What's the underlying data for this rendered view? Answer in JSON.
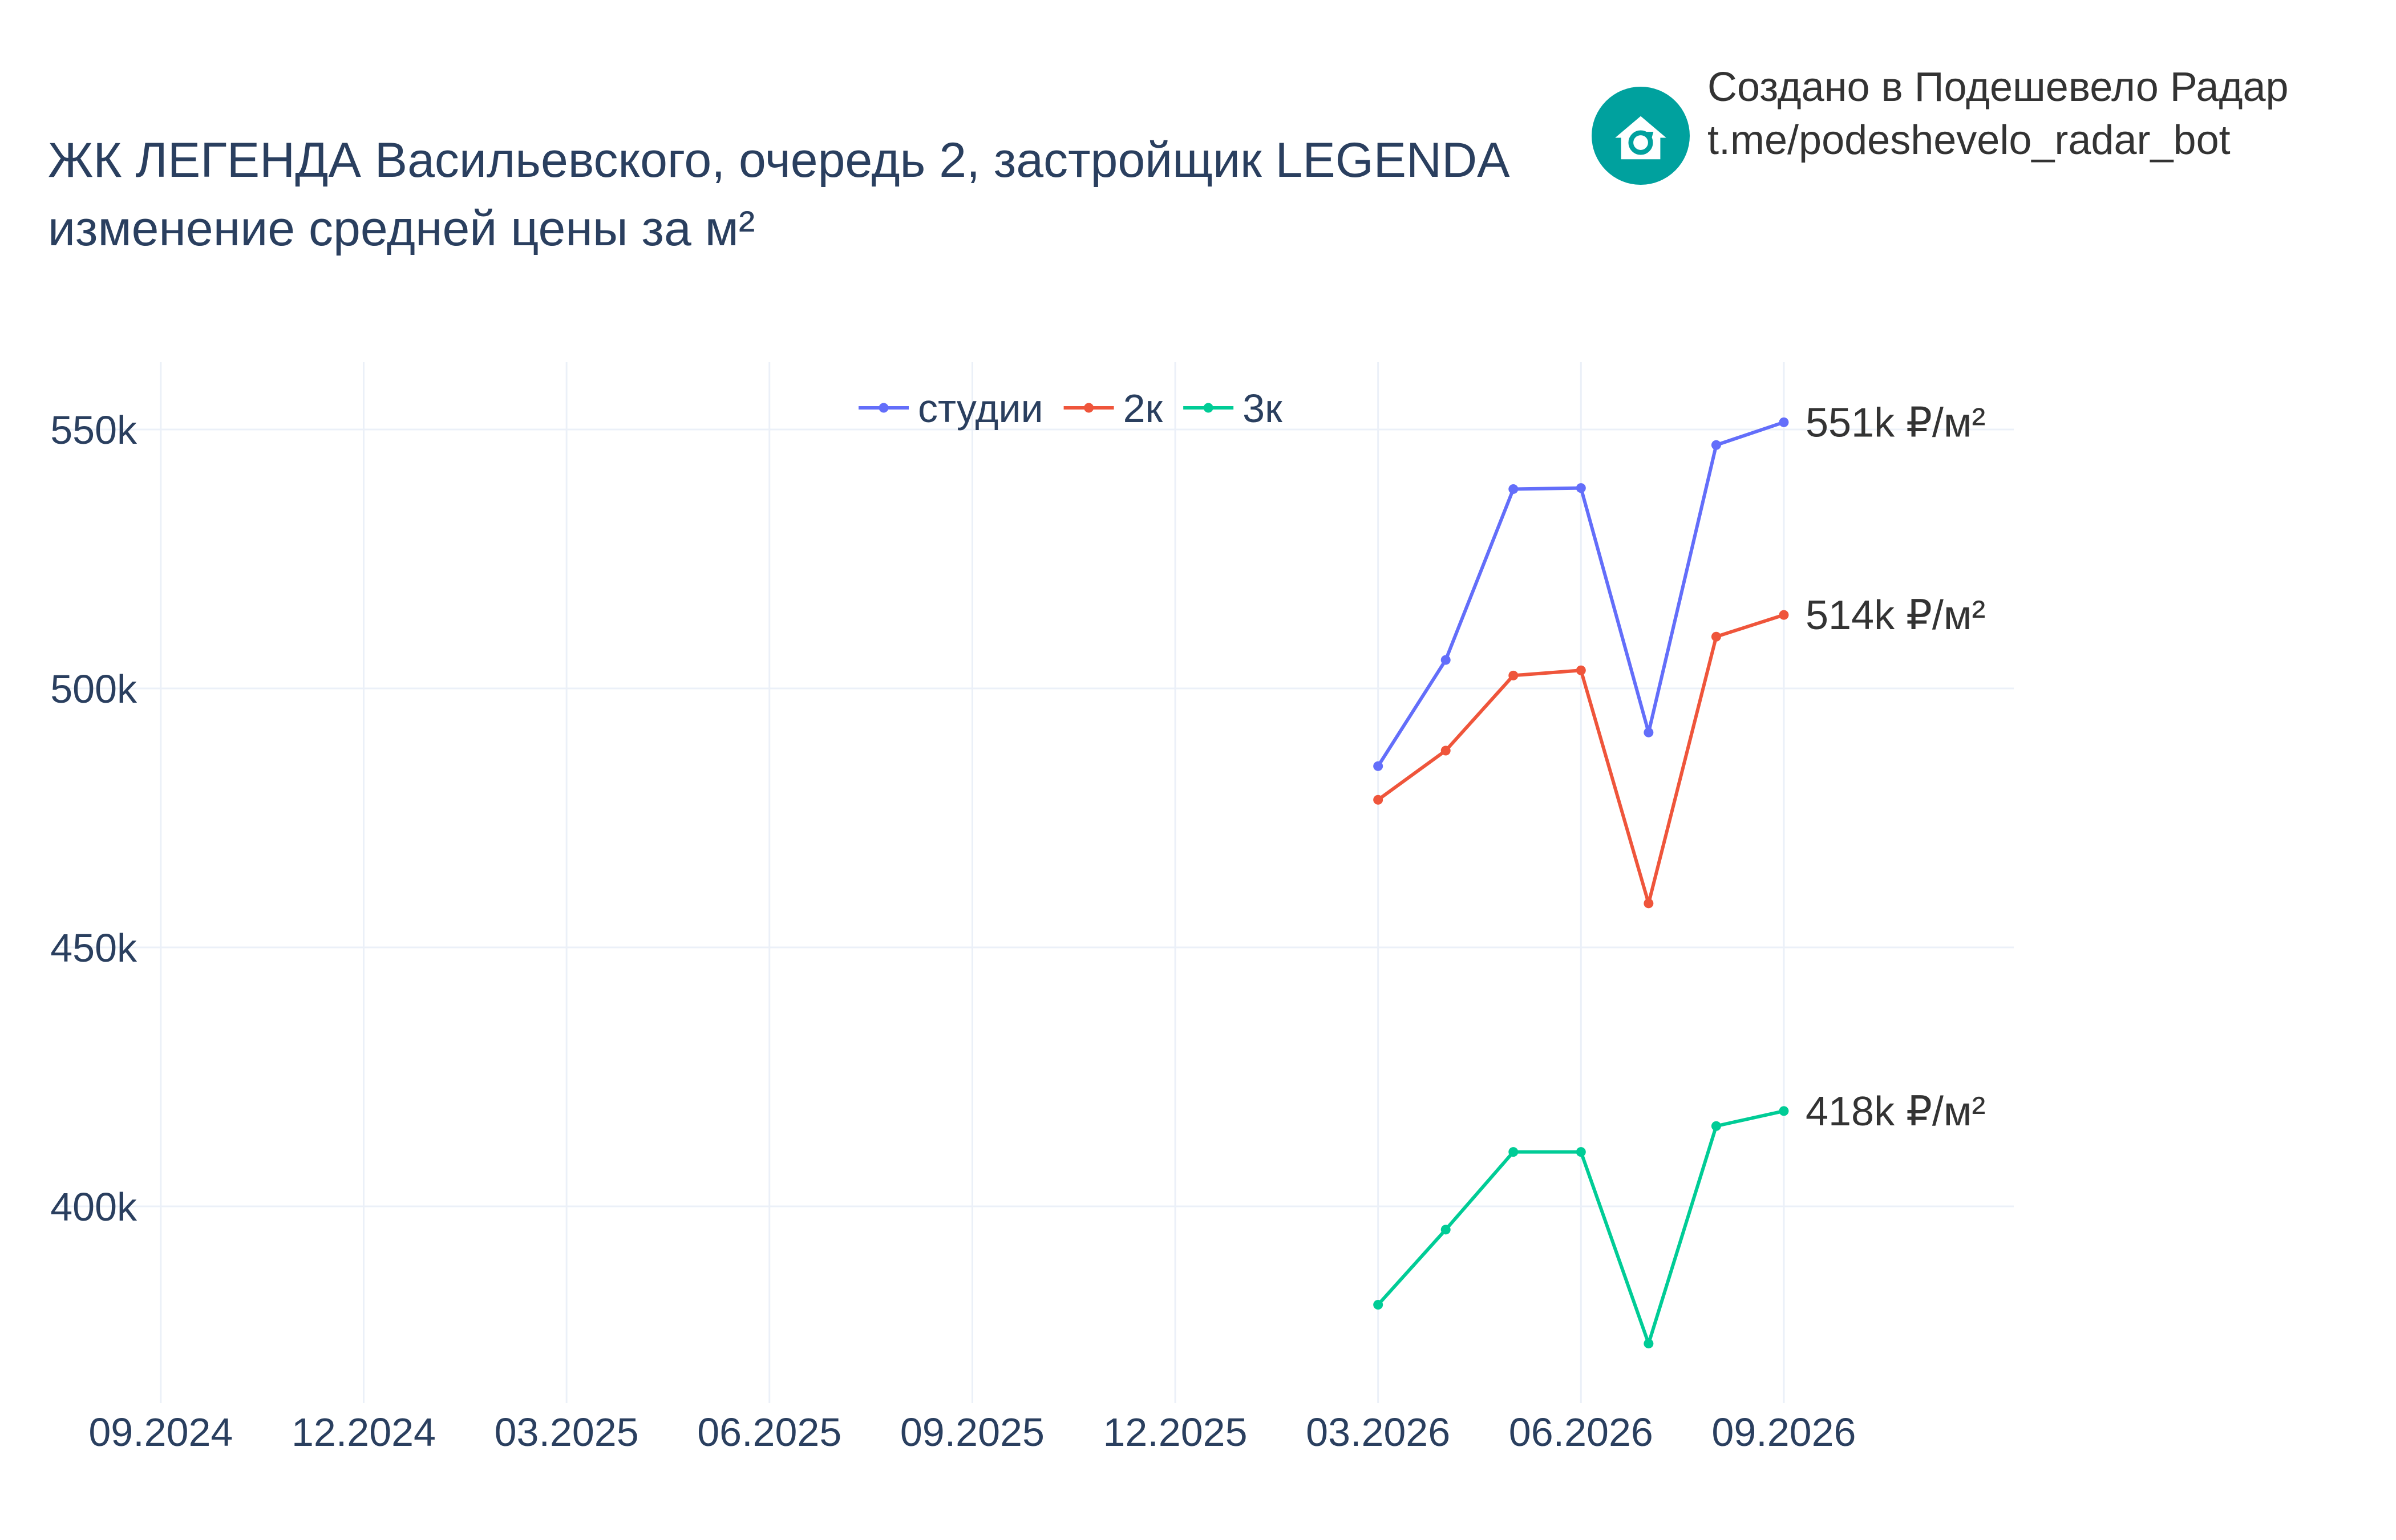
{
  "title": {
    "line1": "ЖК ЛЕГЕНДА Васильевского, очередь 2, застройщик LEGENDA",
    "line2": "изменение средней цены за м²"
  },
  "credit": {
    "line1": "Создано в Подешевело Радар",
    "line2": "t.me/podeshevelo_radar_bot",
    "logo_icon": "house-refresh-icon",
    "logo_color": "#00a19e"
  },
  "chart_data": {
    "type": "line",
    "x_tick_labels": [
      "09.2024",
      "12.2024",
      "03.2025",
      "06.2025",
      "09.2025",
      "12.2025",
      "03.2026",
      "06.2026",
      "09.2026"
    ],
    "y_tick_labels": [
      "400k",
      "450k",
      "500k",
      "550k"
    ],
    "y_ticks": [
      400000,
      450000,
      500000,
      550000
    ],
    "ylim": [
      362000,
      563000
    ],
    "grid": true,
    "legend_placement": "top-center",
    "x": [
      "2026-03-01",
      "2026-04-01",
      "2026-05-01",
      "2026-06-01",
      "2026-07-01",
      "2026-08-01",
      "2026-09-01"
    ],
    "series": [
      {
        "name": "студии",
        "color": "#636efa",
        "values": [
          485000,
          505500,
          538500,
          538700,
          491500,
          547000,
          551400
        ],
        "end_label": "551k ₽/м²"
      },
      {
        "name": "2к",
        "color": "#ef553b",
        "values": [
          478500,
          488000,
          502500,
          503500,
          458500,
          510000,
          514200
        ],
        "end_label": "514k ₽/м²"
      },
      {
        "name": "3к",
        "color": "#00cc96",
        "values": [
          381000,
          395500,
          410500,
          410500,
          373500,
          415500,
          418400
        ],
        "end_label": "418k ₽/м²"
      }
    ]
  }
}
